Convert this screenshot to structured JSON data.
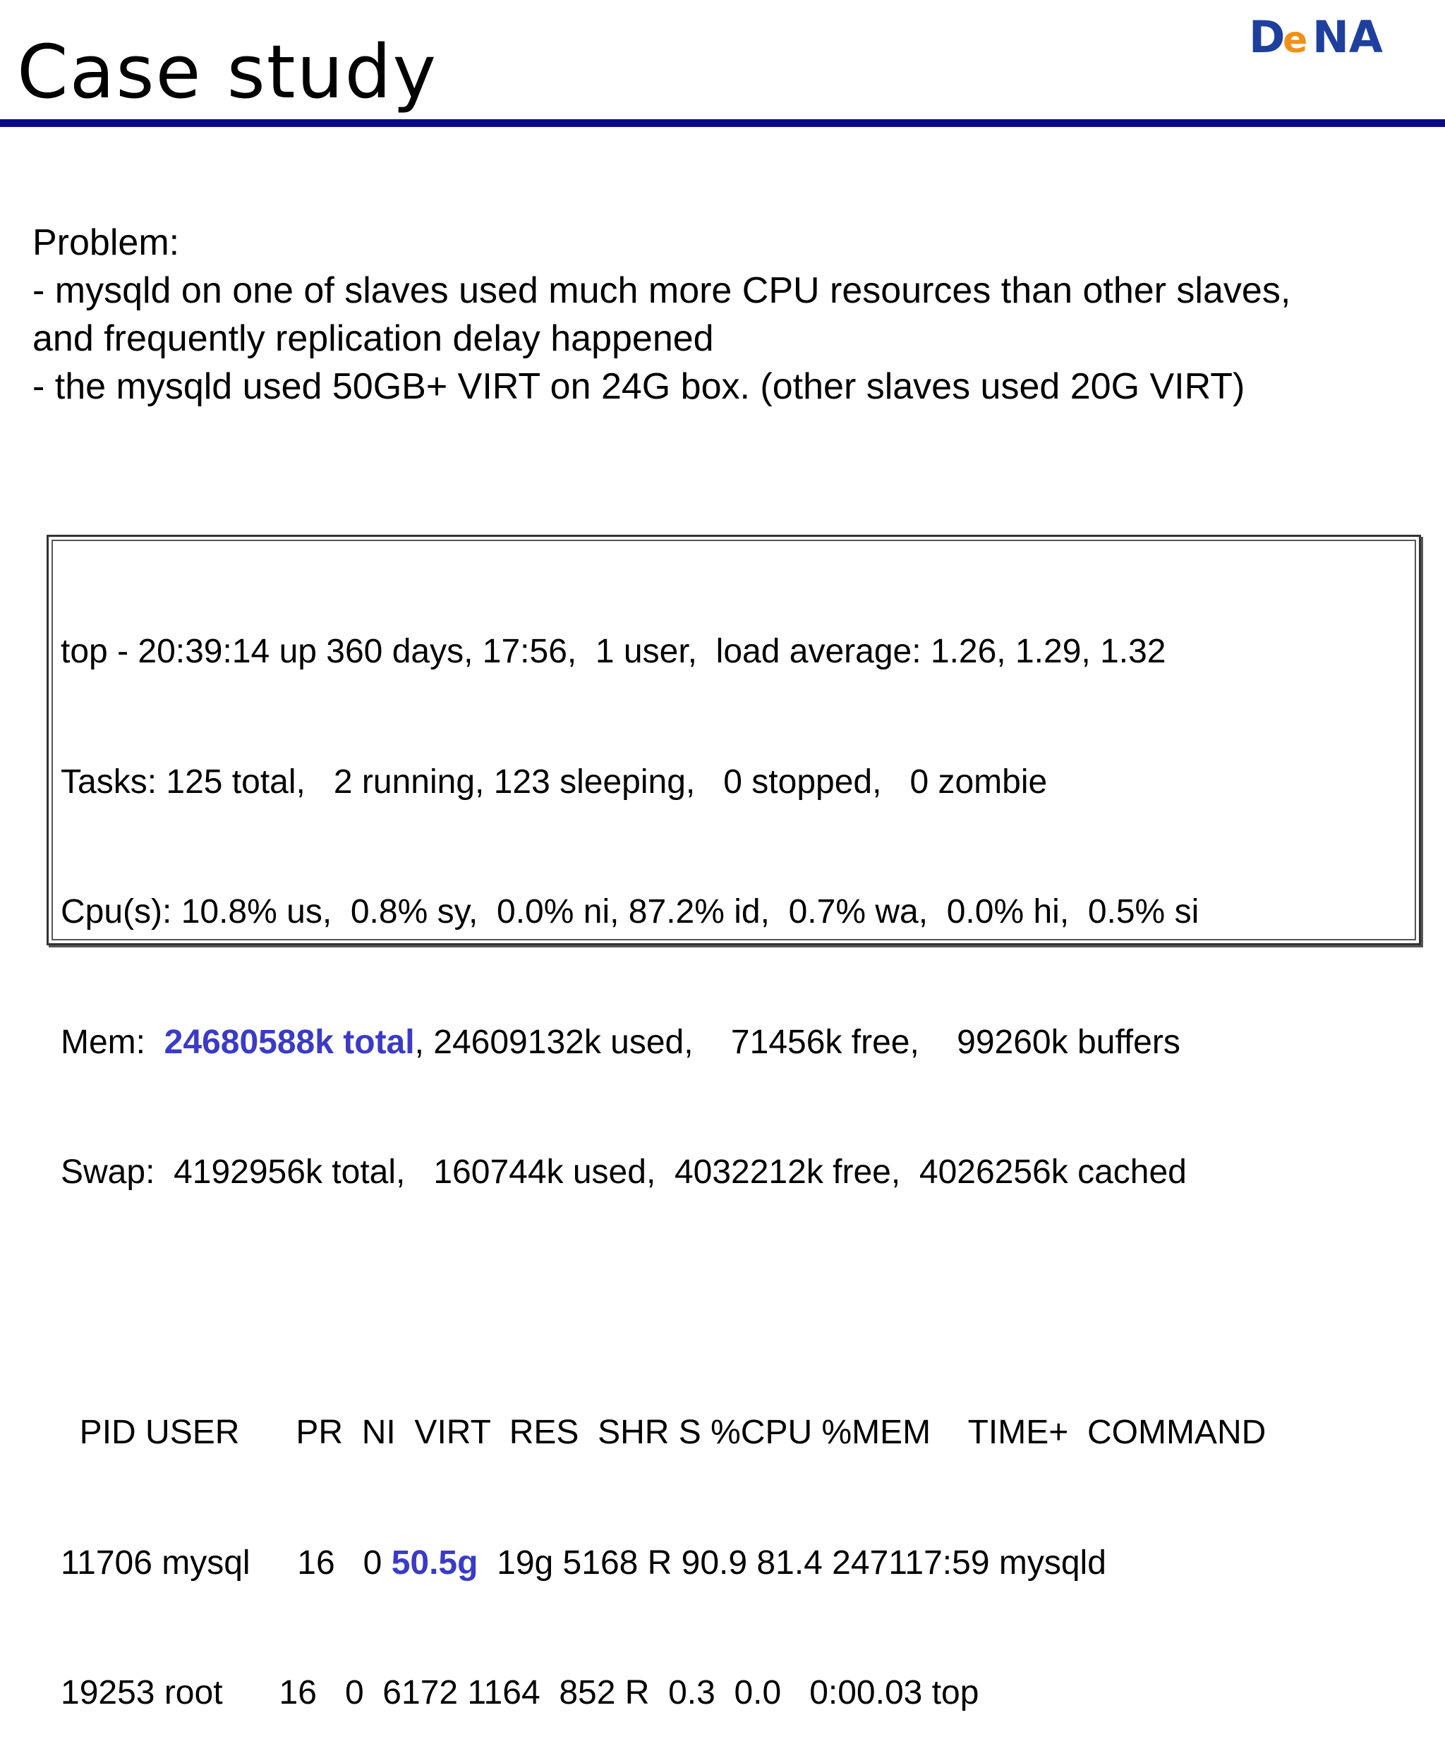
{
  "header": {
    "title": "Case study",
    "logo_text": "DeNA"
  },
  "colors": {
    "title_rule": "#0a0a8c",
    "highlight": "#3b3bc7",
    "logo_blue": "#1f3f9f",
    "logo_orange": "#f0901a"
  },
  "problem": {
    "heading": "Problem:",
    "line1": "- mysqld on one of slaves used much more CPU resources than other slaves,",
    "line2": "and frequently replication delay happened",
    "line3": "- the mysqld used 50GB+ VIRT on 24G box. (other slaves used 20G VIRT)"
  },
  "top_output": {
    "summary": "top - 20:39:14 up 360 days, 17:56,  1 user,  load average: 1.26, 1.29, 1.32",
    "tasks": "Tasks: 125 total,   2 running, 123 sleeping,   0 stopped,   0 zombie",
    "cpu": "Cpu(s): 10.8% us,  0.8% sy,  0.0% ni, 87.2% id,  0.7% wa,  0.0% hi,  0.5% si",
    "mem_prefix": "Mem:  ",
    "mem_total": "24680588k total",
    "mem_rest": ", 24609132k used,    71456k free,    99260k buffers",
    "swap": "Swap:  4192956k total,   160744k used,  4032212k free,  4026256k cached",
    "blank": "",
    "header_row": "  PID USER      PR  NI  VIRT  RES  SHR S %CPU %MEM    TIME+  COMMAND",
    "row1_prefix": "11706 mysql     16   0 ",
    "row1_virt": "50.5g",
    "row1_rest": "  19g 5168 R 90.9 81.4 247117:59 mysqld",
    "row2": "19253 root      16   0  6172 1164  852 R  0.3  0.0   0:00.03 top"
  }
}
